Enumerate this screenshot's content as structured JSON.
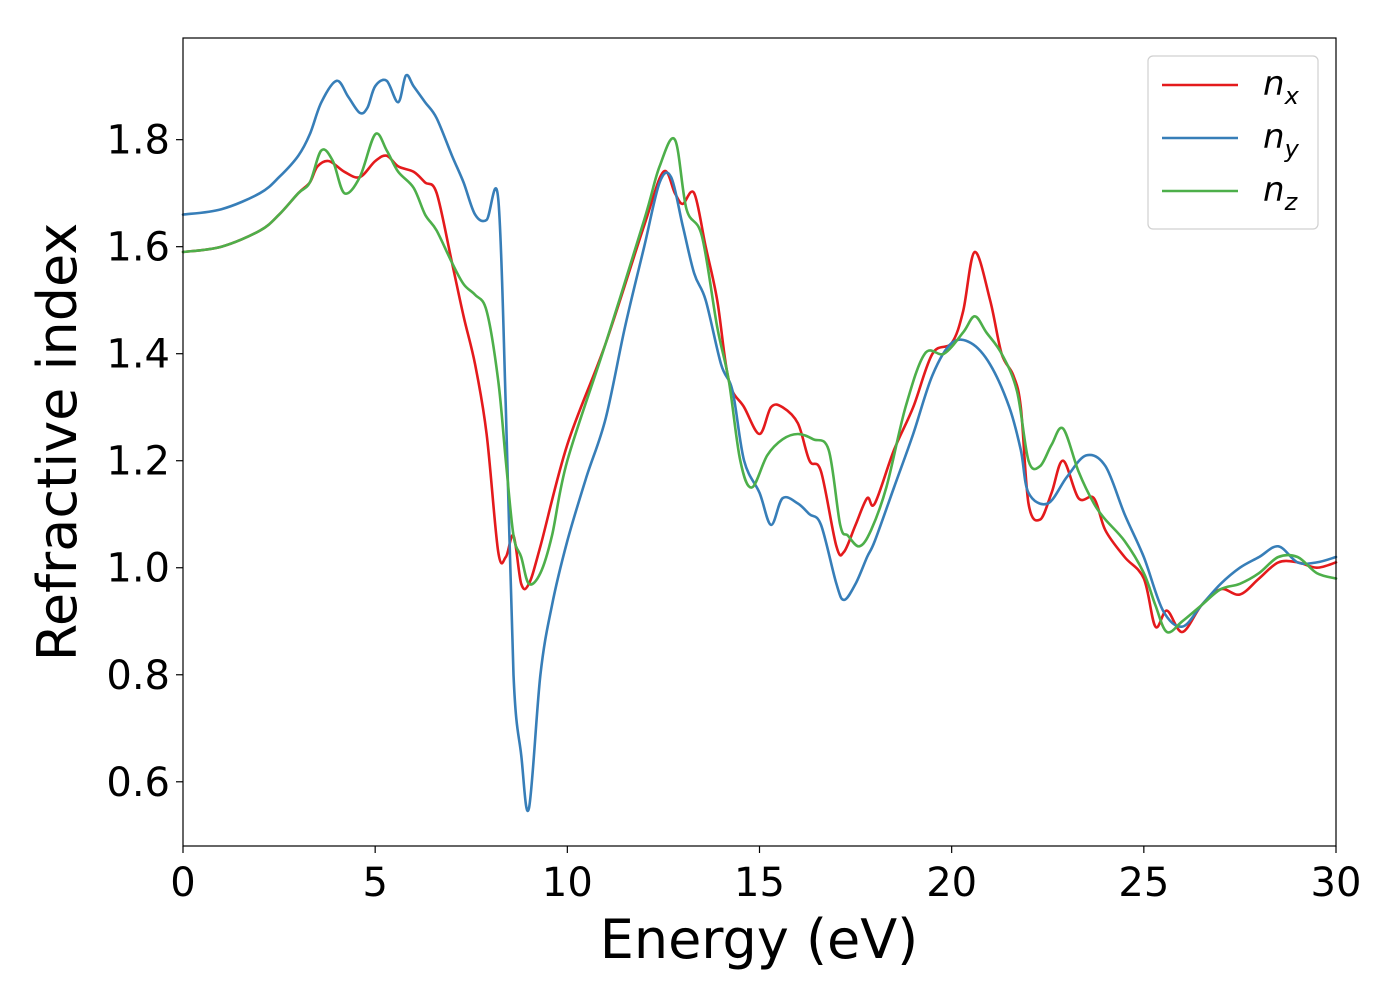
{
  "chart_data": {
    "type": "line",
    "title": "",
    "xlabel": "Energy (eV)",
    "ylabel": "Refractive index",
    "xlim": [
      0,
      30
    ],
    "ylim": [
      0.48,
      1.99
    ],
    "xticks": [
      0,
      5,
      10,
      15,
      20,
      25,
      30
    ],
    "yticks": [
      0.6,
      0.8,
      1.0,
      1.2,
      1.4,
      1.6,
      1.8
    ],
    "xtick_labels": [
      "0",
      "5",
      "10",
      "15",
      "20",
      "25",
      "30"
    ],
    "ytick_labels": [
      "0.6",
      "0.8",
      "1.0",
      "1.2",
      "1.4",
      "1.6",
      "1.8"
    ],
    "grid": false,
    "legend_position": "top-right",
    "series": [
      {
        "name": "n_x",
        "label_base": "n",
        "label_sub": "x",
        "color": "#e41a1c",
        "x": [
          0,
          1,
          2,
          2.5,
          3,
          3.3,
          3.5,
          3.8,
          4.2,
          4.6,
          5,
          5.3,
          5.6,
          6,
          6.3,
          6.6,
          7,
          7.3,
          7.6,
          7.9,
          8.2,
          8.4,
          8.6,
          8.8,
          9,
          9.3,
          10,
          11,
          12,
          12.5,
          12.8,
          13,
          13.3,
          13.6,
          13.9,
          14.2,
          14.6,
          15,
          15.3,
          15.6,
          16,
          16.3,
          16.6,
          17,
          17.2,
          17.5,
          17.8,
          18,
          18.5,
          19,
          19.5,
          20,
          20.3,
          20.6,
          21,
          21.3,
          21.6,
          21.8,
          22,
          22.3,
          22.6,
          22.9,
          23.3,
          23.7,
          24,
          24.5,
          25,
          25.3,
          25.6,
          26,
          26.5,
          27,
          27.5,
          28,
          28.5,
          29,
          29.5,
          30
        ],
        "y": [
          1.59,
          1.6,
          1.63,
          1.66,
          1.7,
          1.72,
          1.75,
          1.76,
          1.74,
          1.73,
          1.76,
          1.77,
          1.75,
          1.74,
          1.72,
          1.7,
          1.57,
          1.47,
          1.38,
          1.25,
          1.03,
          1.02,
          1.06,
          0.97,
          0.97,
          1.04,
          1.23,
          1.42,
          1.64,
          1.74,
          1.7,
          1.68,
          1.7,
          1.6,
          1.5,
          1.35,
          1.3,
          1.25,
          1.3,
          1.3,
          1.27,
          1.2,
          1.18,
          1.04,
          1.03,
          1.08,
          1.13,
          1.12,
          1.22,
          1.3,
          1.4,
          1.42,
          1.48,
          1.59,
          1.5,
          1.4,
          1.36,
          1.3,
          1.12,
          1.09,
          1.14,
          1.2,
          1.13,
          1.13,
          1.07,
          1.02,
          0.98,
          0.89,
          0.92,
          0.88,
          0.93,
          0.96,
          0.95,
          0.98,
          1.01,
          1.01,
          1.0,
          1.01
        ]
      },
      {
        "name": "n_y",
        "label_base": "n",
        "label_sub": "y",
        "color": "#377eb8",
        "x": [
          0,
          1,
          2,
          2.5,
          3,
          3.3,
          3.6,
          4,
          4.3,
          4.6,
          4.8,
          5,
          5.3,
          5.6,
          5.8,
          6,
          6.3,
          6.6,
          7,
          7.3,
          7.6,
          7.9,
          8.2,
          8.4,
          8.6,
          8.8,
          9,
          9.3,
          9.6,
          10,
          10.5,
          11,
          11.5,
          12,
          12.4,
          12.7,
          13,
          13.3,
          13.6,
          14,
          14.3,
          14.6,
          15,
          15.3,
          15.6,
          16,
          16.3,
          16.6,
          17,
          17.2,
          17.5,
          17.8,
          18,
          18.5,
          19,
          19.5,
          20,
          20.5,
          21,
          21.5,
          21.8,
          22,
          22.5,
          23,
          23.5,
          24,
          24.5,
          25,
          25.5,
          26,
          26.5,
          27,
          27.5,
          28,
          28.5,
          29,
          29.5,
          30
        ],
        "y": [
          1.66,
          1.67,
          1.7,
          1.73,
          1.77,
          1.81,
          1.87,
          1.91,
          1.88,
          1.85,
          1.86,
          1.9,
          1.91,
          1.87,
          1.92,
          1.9,
          1.87,
          1.84,
          1.77,
          1.72,
          1.66,
          1.65,
          1.69,
          1.3,
          0.8,
          0.65,
          0.55,
          0.8,
          0.93,
          1.05,
          1.17,
          1.28,
          1.45,
          1.6,
          1.72,
          1.73,
          1.64,
          1.55,
          1.5,
          1.38,
          1.33,
          1.2,
          1.14,
          1.08,
          1.13,
          1.12,
          1.1,
          1.08,
          0.97,
          0.94,
          0.97,
          1.02,
          1.05,
          1.15,
          1.25,
          1.36,
          1.42,
          1.42,
          1.38,
          1.3,
          1.22,
          1.14,
          1.12,
          1.17,
          1.21,
          1.19,
          1.1,
          1.02,
          0.92,
          0.89,
          0.93,
          0.97,
          1.0,
          1.02,
          1.04,
          1.01,
          1.01,
          1.02
        ]
      },
      {
        "name": "n_z",
        "label_base": "n",
        "label_sub": "z",
        "color": "#4daf4a",
        "x": [
          0,
          1,
          2,
          2.5,
          3,
          3.3,
          3.6,
          3.9,
          4.2,
          4.6,
          5,
          5.3,
          5.6,
          6,
          6.3,
          6.6,
          7,
          7.3,
          7.6,
          7.9,
          8.2,
          8.4,
          8.6,
          8.8,
          9,
          9.3,
          9.6,
          10,
          11,
          12,
          12.4,
          12.8,
          13.1,
          13.5,
          13.9,
          14.2,
          14.5,
          14.8,
          15.2,
          15.6,
          16,
          16.4,
          16.8,
          17.1,
          17.3,
          17.6,
          17.9,
          18.3,
          18.8,
          19.3,
          19.8,
          20.3,
          20.6,
          20.9,
          21.3,
          21.7,
          22,
          22.3,
          22.6,
          22.9,
          23.3,
          23.7,
          24,
          24.5,
          25,
          25.3,
          25.6,
          26,
          26.5,
          27,
          27.5,
          28,
          28.5,
          29,
          29.5,
          30
        ],
        "y": [
          1.59,
          1.6,
          1.63,
          1.66,
          1.7,
          1.72,
          1.78,
          1.76,
          1.7,
          1.73,
          1.81,
          1.78,
          1.74,
          1.71,
          1.66,
          1.63,
          1.57,
          1.53,
          1.51,
          1.48,
          1.35,
          1.2,
          1.06,
          1.02,
          0.97,
          0.99,
          1.06,
          1.2,
          1.42,
          1.65,
          1.75,
          1.8,
          1.67,
          1.62,
          1.45,
          1.35,
          1.2,
          1.15,
          1.21,
          1.24,
          1.25,
          1.24,
          1.22,
          1.08,
          1.06,
          1.04,
          1.07,
          1.15,
          1.3,
          1.4,
          1.4,
          1.44,
          1.47,
          1.44,
          1.4,
          1.33,
          1.2,
          1.19,
          1.23,
          1.26,
          1.18,
          1.12,
          1.09,
          1.05,
          0.99,
          0.93,
          0.88,
          0.9,
          0.93,
          0.96,
          0.97,
          0.99,
          1.02,
          1.02,
          0.99,
          0.98
        ]
      }
    ]
  }
}
